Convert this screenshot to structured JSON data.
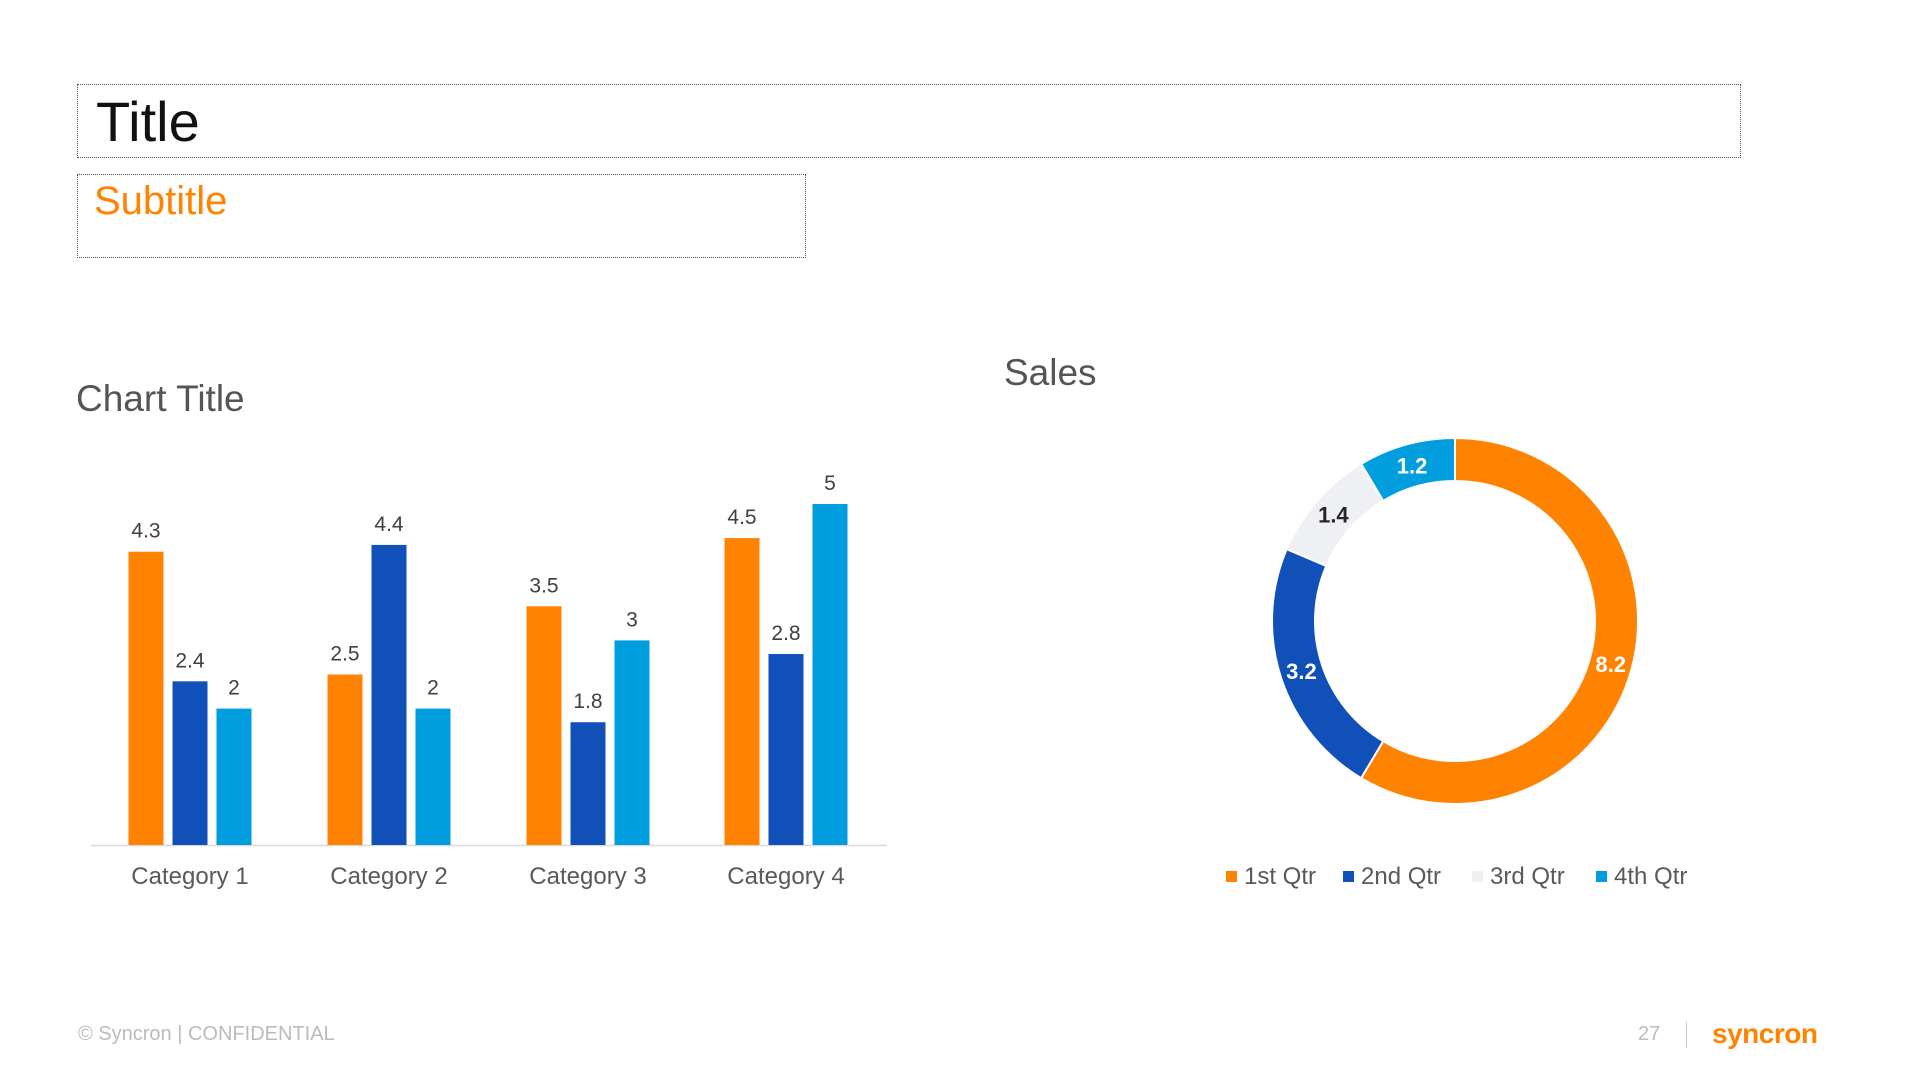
{
  "slide": {
    "title": "Title",
    "subtitle": "Subtitle",
    "footer": {
      "copyright": "© Syncron | CONFIDENTIAL",
      "page_number": "27",
      "logo_text": "syncron"
    }
  },
  "colors": {
    "orange": "#FF8200",
    "blue": "#1150B8",
    "cyan": "#009EDF",
    "light": "#EEF0F3"
  },
  "chart_data": [
    {
      "type": "bar",
      "title": "Chart Title",
      "categories": [
        "Category 1",
        "Category 2",
        "Category 3",
        "Category 4"
      ],
      "series": [
        {
          "values": [
            4.3,
            2.5,
            3.5,
            4.5
          ],
          "color": "#FF8200"
        },
        {
          "values": [
            2.4,
            4.4,
            1.8,
            2.8
          ],
          "color": "#1150B8"
        },
        {
          "values": [
            2,
            2,
            3,
            5
          ],
          "color": "#009EDF"
        }
      ],
      "ylim": [
        0,
        5
      ],
      "grid": false,
      "data_labels": true
    },
    {
      "type": "pie",
      "donut": true,
      "title": "Sales",
      "labels": [
        "1st Qtr",
        "2nd Qtr",
        "3rd Qtr",
        "4th Qtr"
      ],
      "values": [
        8.2,
        3.2,
        1.4,
        1.2
      ],
      "colors": [
        "#FF8200",
        "#1150B8",
        "#EEF0F3",
        "#009EDF"
      ],
      "legend": "bottom"
    }
  ]
}
